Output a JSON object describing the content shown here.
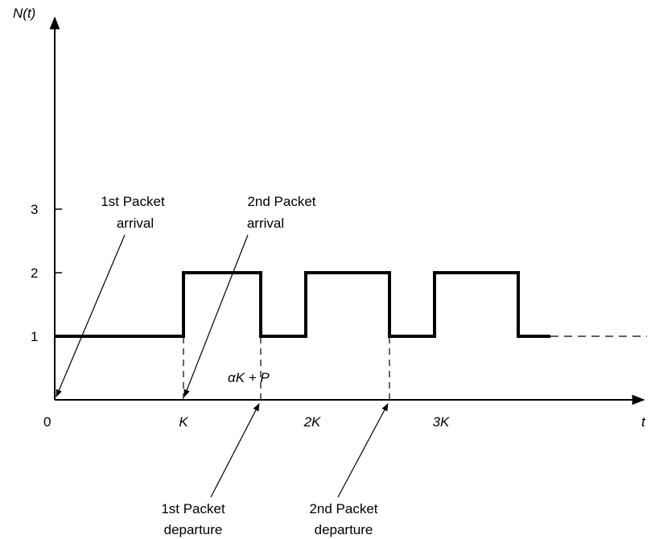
{
  "chart_data": {
    "type": "line",
    "title": "",
    "xlabel": "t",
    "ylabel": "N(t)",
    "origin_label": "0",
    "x_ticks": [
      {
        "value": 1,
        "label": "K"
      },
      {
        "value": 2,
        "label": "2K"
      },
      {
        "value": 3,
        "label": "3K"
      }
    ],
    "y_ticks": [
      {
        "value": 1,
        "label": "1"
      },
      {
        "value": 2,
        "label": "2"
      },
      {
        "value": 3,
        "label": "3"
      }
    ],
    "xlim": [
      0,
      3.8
    ],
    "ylim": [
      0,
      5
    ],
    "series": [
      {
        "step_points": [
          [
            0,
            1
          ],
          [
            1,
            1
          ],
          [
            1,
            2
          ],
          [
            1.6,
            2
          ],
          [
            1.6,
            1
          ],
          [
            1.95,
            1
          ],
          [
            1.95,
            2
          ],
          [
            2.6,
            2
          ],
          [
            2.6,
            1
          ],
          [
            2.95,
            1
          ],
          [
            2.95,
            2
          ],
          [
            3.6,
            2
          ],
          [
            3.6,
            1
          ],
          [
            3.85,
            1
          ]
        ],
        "continuation_dashed": [
          [
            3.85,
            1
          ],
          [
            4.6,
            1
          ]
        ]
      }
    ],
    "reference_lines": [
      {
        "x": 1,
        "y_from": 0,
        "y_to": 2
      },
      {
        "x": 1.6,
        "y_from": 0,
        "y_to": 2
      },
      {
        "x": 2.6,
        "y_from": 0,
        "y_to": 2
      }
    ],
    "annotations": [
      {
        "lines": [
          "1st Packet",
          "arrival"
        ],
        "points_to_x": 0
      },
      {
        "lines": [
          "2nd Packet",
          "arrival"
        ],
        "points_to_x": 1
      },
      {
        "lines": [
          "1st Packet",
          "departure"
        ],
        "points_to_x": 1.6
      },
      {
        "lines": [
          "2nd Packet",
          "departure"
        ],
        "points_to_x": 2.6
      }
    ],
    "interval_label": "αK + P"
  }
}
